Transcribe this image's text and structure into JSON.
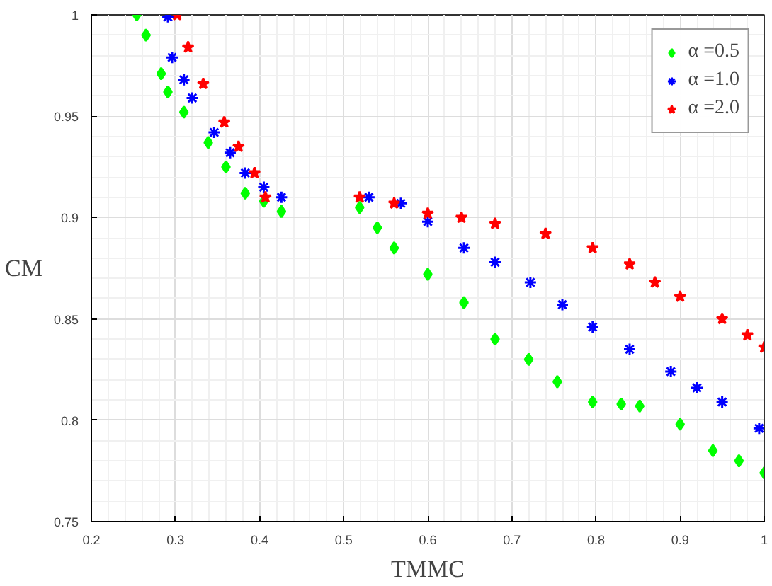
{
  "chart_data": {
    "type": "scatter",
    "xlabel": "TMMC",
    "ylabel": "CM",
    "xlim": [
      0.2,
      1
    ],
    "ylim": [
      0.75,
      1
    ],
    "xticks": [
      0.2,
      0.3,
      0.4,
      0.5,
      0.6,
      0.7,
      0.8,
      0.9,
      1
    ],
    "yticks": [
      0.75,
      0.8,
      0.85,
      0.9,
      0.95,
      1
    ],
    "grid": true,
    "legend": "top right",
    "series": [
      {
        "name": "α =0.5",
        "color": "#00ff00",
        "marker": "diamond",
        "x": [
          0.254,
          0.265,
          0.283,
          0.291,
          0.31,
          0.339,
          0.36,
          0.383,
          0.405,
          0.426,
          0.519,
          0.54,
          0.56,
          0.6,
          0.643,
          0.68,
          0.72,
          0.754,
          0.796,
          0.83,
          0.852,
          0.9,
          0.939,
          0.97,
          1.0
        ],
        "values": [
          1.0,
          0.99,
          0.971,
          0.962,
          0.952,
          0.937,
          0.925,
          0.912,
          0.908,
          0.903,
          0.905,
          0.895,
          0.885,
          0.872,
          0.858,
          0.84,
          0.83,
          0.819,
          0.809,
          0.808,
          0.807,
          0.798,
          0.785,
          0.78,
          0.774
        ]
      },
      {
        "name": "α =1.0",
        "color": "#0000ff",
        "marker": "cross",
        "x": [
          0.291,
          0.296,
          0.31,
          0.32,
          0.346,
          0.365,
          0.383,
          0.405,
          0.426,
          0.53,
          0.568,
          0.6,
          0.643,
          0.68,
          0.722,
          0.76,
          0.796,
          0.84,
          0.889,
          0.92,
          0.95,
          0.994
        ],
        "values": [
          0.999,
          0.979,
          0.968,
          0.959,
          0.942,
          0.932,
          0.922,
          0.915,
          0.91,
          0.91,
          0.907,
          0.898,
          0.885,
          0.878,
          0.868,
          0.857,
          0.846,
          0.835,
          0.824,
          0.816,
          0.809,
          0.796
        ]
      },
      {
        "name": "α =2.0",
        "color": "#ff0000",
        "marker": "star",
        "x": [
          0.302,
          0.315,
          0.333,
          0.358,
          0.375,
          0.394,
          0.407,
          0.519,
          0.56,
          0.6,
          0.64,
          0.68,
          0.74,
          0.796,
          0.84,
          0.87,
          0.9,
          0.95,
          0.98,
          1.0
        ],
        "values": [
          1.0,
          0.984,
          0.966,
          0.947,
          0.935,
          0.922,
          0.91,
          0.91,
          0.907,
          0.902,
          0.9,
          0.897,
          0.892,
          0.885,
          0.877,
          0.868,
          0.861,
          0.85,
          0.842,
          0.836
        ]
      }
    ]
  }
}
